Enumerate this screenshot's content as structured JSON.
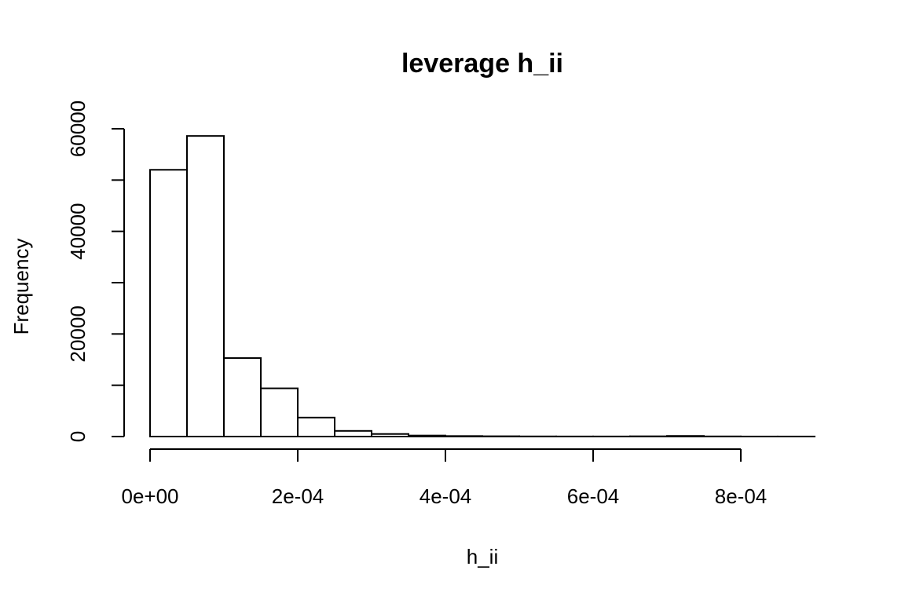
{
  "chart_data": {
    "type": "bar",
    "title": "leverage h_ii",
    "xlabel": "h_ii",
    "ylabel": "Frequency",
    "bin_width": 5e-05,
    "bins": [
      {
        "x0": 0.0,
        "x1": 5e-05,
        "count": 52000
      },
      {
        "x0": 5e-05,
        "x1": 0.0001,
        "count": 58600
      },
      {
        "x0": 0.0001,
        "x1": 0.00015,
        "count": 15300
      },
      {
        "x0": 0.00015,
        "x1": 0.0002,
        "count": 9400
      },
      {
        "x0": 0.0002,
        "x1": 0.00025,
        "count": 3700
      },
      {
        "x0": 0.00025,
        "x1": 0.0003,
        "count": 1100
      },
      {
        "x0": 0.0003,
        "x1": 0.00035,
        "count": 500
      },
      {
        "x0": 0.00035,
        "x1": 0.0004,
        "count": 200
      },
      {
        "x0": 0.0004,
        "x1": 0.00045,
        "count": 100
      },
      {
        "x0": 0.00045,
        "x1": 0.0005,
        "count": 60
      },
      {
        "x0": 0.0005,
        "x1": 0.00055,
        "count": 30
      },
      {
        "x0": 0.00055,
        "x1": 0.0006,
        "count": 20
      },
      {
        "x0": 0.0006,
        "x1": 0.00065,
        "count": 20
      },
      {
        "x0": 0.00065,
        "x1": 0.0007,
        "count": 50
      },
      {
        "x0": 0.0007,
        "x1": 0.00075,
        "count": 120
      },
      {
        "x0": 0.00075,
        "x1": 0.0008,
        "count": 30
      },
      {
        "x0": 0.0008,
        "x1": 0.00085,
        "count": 10
      },
      {
        "x0": 0.00085,
        "x1": 0.0009,
        "count": 10
      }
    ],
    "xlim": [
      0.0,
      0.0009
    ],
    "ylim": [
      0,
      60000
    ],
    "x_ticks": [
      {
        "value": 0.0,
        "label": "0e+00"
      },
      {
        "value": 0.0002,
        "label": "2e-04"
      },
      {
        "value": 0.0004,
        "label": "4e-04"
      },
      {
        "value": 0.0006,
        "label": "6e-04"
      },
      {
        "value": 0.0008,
        "label": "8e-04"
      }
    ],
    "y_ticks": [
      {
        "value": 0,
        "label": "0"
      },
      {
        "value": 10000,
        "label": ""
      },
      {
        "value": 20000,
        "label": "20000"
      },
      {
        "value": 30000,
        "label": ""
      },
      {
        "value": 40000,
        "label": "40000"
      },
      {
        "value": 50000,
        "label": ""
      },
      {
        "value": 60000,
        "label": "60000"
      }
    ],
    "grid": false,
    "legend": "none"
  }
}
